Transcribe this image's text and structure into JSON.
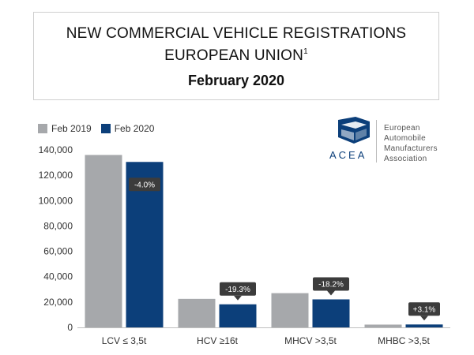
{
  "header": {
    "title_line1": "NEW COMMERCIAL VEHICLE REGISTRATIONS",
    "title_line2": "EUROPEAN UNION",
    "title_footnote": "1",
    "period": "February 2020"
  },
  "logo": {
    "brand": "ACEA",
    "lines": [
      "European",
      "Automobile",
      "Manufacturers",
      "Association"
    ]
  },
  "colors": {
    "feb2019": "#a6a8ab",
    "feb2020": "#0c3f7a",
    "annotation": "#3c3c3c"
  },
  "chart_data": {
    "type": "bar",
    "categories": [
      "LCV ≤ 3,5t",
      "HCV ≥16t",
      "MHCV >3,5t",
      "MHBC >3,5t"
    ],
    "series": [
      {
        "name": "Feb 2019",
        "values": [
          136000,
          22500,
          27000,
          2200
        ]
      },
      {
        "name": "Feb 2020",
        "values": [
          130500,
          18200,
          22100,
          2300
        ]
      }
    ],
    "annotations": [
      "-4.0%",
      "-19.3%",
      "-18.2%",
      "+3.1%"
    ],
    "ylim": [
      0,
      140000
    ],
    "yticks": [
      "0",
      "20,000",
      "40,000",
      "60,000",
      "80,000",
      "100,000",
      "120,000",
      "140,000"
    ],
    "legend": "top-left",
    "grid": false
  }
}
